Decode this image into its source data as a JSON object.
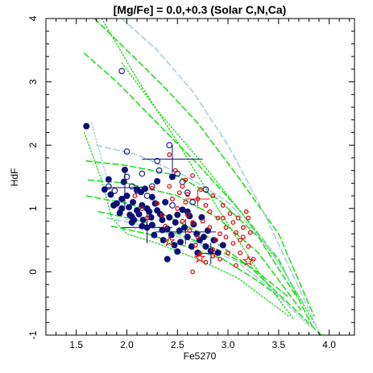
{
  "chart_data": {
    "type": "scatter",
    "title": "[Mg/Fe] = 0.0,+0.3 (Solar C,N,Ca)",
    "xlabel": "Fe5270",
    "ylabel": "HdF",
    "xlim": [
      1.2,
      4.25
    ],
    "ylim": [
      -1,
      4
    ],
    "xticks": [
      "1.5",
      "2.0",
      "2.5",
      "3.0",
      "3.5",
      "4.0"
    ],
    "xtick_values": [
      1.5,
      2.0,
      2.5,
      3.0,
      3.5,
      4.0
    ],
    "yticks": [
      "-1",
      "0",
      "1",
      "2",
      "3",
      "4"
    ],
    "ytick_values": [
      -1,
      0,
      1,
      2,
      3,
      4
    ],
    "grid": false,
    "colors": {
      "navy": "#0a0f78",
      "red": "#e01010",
      "model_green": "#22dd22",
      "model_light": "#a8cfe0"
    },
    "series": [
      {
        "marker": "filled-circle",
        "color": "#0a0f78",
        "points": [
          [
            1.6,
            2.3
          ],
          [
            1.78,
            1.3
          ],
          [
            1.82,
            1.46
          ],
          [
            1.84,
            1.22
          ],
          [
            1.87,
            1.05
          ],
          [
            1.9,
            1.08
          ],
          [
            1.93,
            0.93
          ],
          [
            1.95,
            1.15
          ],
          [
            1.97,
            1.42
          ],
          [
            1.98,
            1.61
          ],
          [
            2.0,
            1.2
          ],
          [
            2.02,
            1.02
          ],
          [
            2.03,
            0.9
          ],
          [
            2.05,
            0.87
          ],
          [
            2.06,
            1.1
          ],
          [
            2.07,
            0.82
          ],
          [
            2.1,
            0.97
          ],
          [
            2.12,
            0.91
          ],
          [
            2.14,
            1.26
          ],
          [
            2.15,
            1.05
          ],
          [
            2.16,
            0.82
          ],
          [
            2.18,
            1.31
          ],
          [
            2.2,
            1.0
          ],
          [
            2.2,
            0.7
          ],
          [
            2.22,
            0.95
          ],
          [
            2.24,
            0.86
          ],
          [
            2.25,
            0.74
          ],
          [
            2.27,
            0.58
          ],
          [
            2.28,
            1.08
          ],
          [
            2.3,
            0.97
          ],
          [
            2.3,
            1.43
          ],
          [
            2.33,
            0.91
          ],
          [
            2.35,
            0.66
          ],
          [
            2.36,
            0.5
          ],
          [
            2.38,
            1.1
          ],
          [
            2.4,
            0.68
          ],
          [
            2.42,
            0.86
          ],
          [
            2.44,
            0.58
          ],
          [
            2.45,
            1.5
          ],
          [
            2.47,
            0.42
          ],
          [
            2.48,
            0.78
          ],
          [
            2.5,
            0.9
          ],
          [
            2.52,
            0.65
          ],
          [
            2.53,
            0.47
          ],
          [
            2.55,
            0.98
          ],
          [
            2.57,
            0.7
          ],
          [
            2.6,
            0.55
          ],
          [
            2.62,
            0.88
          ],
          [
            2.64,
            0.4
          ],
          [
            2.66,
            0.75
          ],
          [
            2.69,
            0.6
          ],
          [
            2.72,
            0.5
          ],
          [
            2.74,
            0.86
          ],
          [
            2.76,
            0.55
          ],
          [
            2.78,
            0.4
          ],
          [
            2.8,
            0.65
          ],
          [
            2.83,
            0.33
          ],
          [
            2.86,
            0.5
          ],
          [
            2.9,
            0.3
          ],
          [
            2.95,
            0.42
          ],
          [
            2.4,
            0.2
          ],
          [
            2.6,
            0.95
          ],
          [
            2.1,
            1.3
          ],
          [
            2.25,
            1.18
          ],
          [
            1.95,
            1.0
          ],
          [
            2.05,
            0.78
          ],
          [
            2.35,
            0.82
          ],
          [
            2.5,
            0.32
          ],
          [
            2.7,
            0.3
          ],
          [
            2.15,
            0.72
          ]
        ]
      },
      {
        "marker": "open-circle",
        "color": "#0a0f78",
        "points": [
          [
            1.95,
            3.17
          ],
          [
            2.0,
            1.9
          ],
          [
            2.05,
            1.35
          ],
          [
            2.1,
            1.28
          ],
          [
            2.15,
            1.55
          ],
          [
            2.25,
            1.35
          ],
          [
            2.3,
            1.75
          ],
          [
            2.32,
            1.6
          ],
          [
            1.88,
            1.28
          ],
          [
            1.82,
            1.35
          ],
          [
            2.0,
            1.5
          ],
          [
            2.6,
            1.25
          ],
          [
            2.65,
            1.1
          ],
          [
            2.45,
            1.05
          ],
          [
            2.78,
            1.3
          ],
          [
            2.42,
            2.0
          ],
          [
            2.5,
            1.55
          ],
          [
            2.2,
            1.2
          ],
          [
            2.55,
            1.42
          ]
        ]
      },
      {
        "marker": "open-circle-small",
        "color": "#e01010",
        "points": [
          [
            2.42,
            1.85
          ],
          [
            2.48,
            1.6
          ],
          [
            2.55,
            1.35
          ],
          [
            2.6,
            1.22
          ],
          [
            2.65,
            1.52
          ],
          [
            2.7,
            1.15
          ],
          [
            2.73,
            1.3
          ],
          [
            2.78,
            1.05
          ],
          [
            2.82,
            0.95
          ],
          [
            2.85,
            1.2
          ],
          [
            2.9,
            0.85
          ],
          [
            2.95,
            1.05
          ],
          [
            2.98,
            0.7
          ],
          [
            3.02,
            0.92
          ],
          [
            3.05,
            0.78
          ],
          [
            3.08,
            0.62
          ],
          [
            3.1,
            0.85
          ],
          [
            3.12,
            0.5
          ],
          [
            3.15,
            0.7
          ],
          [
            3.18,
            0.95
          ],
          [
            3.2,
            0.4
          ],
          [
            3.22,
            0.62
          ],
          [
            3.12,
            0.3
          ],
          [
            3.05,
            0.45
          ],
          [
            2.98,
            0.55
          ],
          [
            2.92,
            0.6
          ],
          [
            2.88,
            0.5
          ],
          [
            2.82,
            0.7
          ],
          [
            2.75,
            0.8
          ],
          [
            2.7,
            0.55
          ],
          [
            2.65,
            0.78
          ],
          [
            2.6,
            0.9
          ],
          [
            2.55,
            0.8
          ],
          [
            2.5,
            1.0
          ],
          [
            2.45,
            1.15
          ],
          [
            2.42,
            1.35
          ],
          [
            2.52,
            1.25
          ],
          [
            2.58,
            1.1
          ],
          [
            2.62,
            0.65
          ],
          [
            2.68,
            0.42
          ],
          [
            2.72,
            0.28
          ],
          [
            2.78,
            0.15
          ],
          [
            2.85,
            0.25
          ],
          [
            2.92,
            0.2
          ],
          [
            3.0,
            0.3
          ],
          [
            3.08,
            0.1
          ],
          [
            3.15,
            0.55
          ],
          [
            3.2,
            0.85
          ],
          [
            3.25,
            0.2
          ],
          [
            2.35,
            0.9
          ],
          [
            2.38,
            0.72
          ],
          [
            2.3,
            1.08
          ],
          [
            2.2,
            0.85
          ],
          [
            2.15,
            1.0
          ],
          [
            2.08,
            1.2
          ],
          [
            2.25,
            1.32
          ],
          [
            2.85,
            0.35
          ],
          [
            2.95,
            0.85
          ],
          [
            2.58,
            1.45
          ],
          [
            2.65,
            0.0
          ]
        ]
      },
      {
        "marker": "star",
        "color": "#e01010",
        "points": [
          [
            2.72,
            0.22
          ],
          [
            3.2,
            0.17
          ],
          [
            2.42,
            0.48
          ]
        ]
      }
    ],
    "error_bars": [
      {
        "x": 2.45,
        "y": 1.78,
        "xerr": 0.3,
        "yerr": 0.22,
        "color": "#0a0f78"
      },
      {
        "x": 1.98,
        "y": 1.33,
        "xerr": 0.22,
        "yerr": 0.3,
        "color": "#0a0f78"
      },
      {
        "x": 2.2,
        "y": 0.7,
        "xerr": 0.25,
        "yerr": 0.25,
        "color": "#0a0f78"
      },
      {
        "x": 2.58,
        "y": 0.63,
        "xerr": 0.3,
        "yerr": 0.2,
        "color": "#0a0f78"
      },
      {
        "x": 2.83,
        "y": 0.29,
        "xerr": 0.1,
        "yerr": 0.17,
        "color": "#0a0f78"
      },
      {
        "x": 2.7,
        "y": 1.15,
        "xerr": 0.12,
        "yerr": 0.15,
        "color": "#e01010"
      }
    ],
    "model_lines": [
      {
        "style": "dashed",
        "color": "#22dd22",
        "points": [
          [
            1.68,
            4.0
          ],
          [
            2.0,
            3.5
          ],
          [
            2.35,
            2.95
          ],
          [
            2.7,
            2.35
          ],
          [
            3.1,
            1.5
          ],
          [
            3.5,
            0.6
          ],
          [
            3.85,
            -0.7
          ]
        ]
      },
      {
        "style": "dashed",
        "color": "#22dd22",
        "points": [
          [
            1.58,
            3.45
          ],
          [
            1.9,
            3.0
          ],
          [
            2.3,
            2.35
          ],
          [
            2.7,
            1.7
          ],
          [
            3.1,
            1.0
          ],
          [
            3.5,
            0.2
          ],
          [
            3.83,
            -0.85
          ]
        ]
      },
      {
        "style": "dashed",
        "color": "#22dd22",
        "points": [
          [
            1.6,
            1.75
          ],
          [
            2.0,
            1.68
          ],
          [
            2.5,
            1.52
          ],
          [
            2.9,
            1.15
          ],
          [
            3.3,
            0.55
          ],
          [
            3.68,
            -0.4
          ]
        ]
      },
      {
        "style": "dashed",
        "color": "#22dd22",
        "points": [
          [
            1.62,
            1.45
          ],
          [
            2.0,
            1.4
          ],
          [
            2.5,
            1.2
          ],
          [
            2.9,
            0.85
          ],
          [
            3.3,
            0.3
          ],
          [
            3.72,
            -0.6
          ]
        ]
      },
      {
        "style": "dashed",
        "color": "#22dd22",
        "points": [
          [
            1.6,
            1.2
          ],
          [
            2.0,
            1.08
          ],
          [
            2.4,
            0.88
          ],
          [
            2.8,
            0.55
          ],
          [
            3.2,
            0.1
          ],
          [
            3.6,
            -0.5
          ],
          [
            3.92,
            -1.0
          ]
        ]
      },
      {
        "style": "dashed",
        "color": "#22dd22",
        "points": [
          [
            1.72,
            0.95
          ],
          [
            2.1,
            0.82
          ],
          [
            2.5,
            0.6
          ],
          [
            2.9,
            0.35
          ],
          [
            3.25,
            0.05
          ],
          [
            3.6,
            -0.4
          ]
        ]
      },
      {
        "style": "dashed",
        "color": "#22dd22",
        "points": [
          [
            1.85,
            0.72
          ],
          [
            2.2,
            0.6
          ],
          [
            2.55,
            0.42
          ],
          [
            2.95,
            0.2
          ],
          [
            3.3,
            -0.15
          ],
          [
            3.55,
            -0.45
          ]
        ]
      },
      {
        "style": "dotted",
        "color": "#22dd22",
        "points": [
          [
            1.75,
            4.0
          ],
          [
            2.1,
            3.05
          ],
          [
            2.5,
            2.05
          ],
          [
            2.9,
            1.0
          ],
          [
            3.3,
            0.0
          ],
          [
            3.65,
            -0.75
          ]
        ]
      },
      {
        "style": "dotted",
        "color": "#22dd22",
        "points": [
          [
            1.58,
            2.2
          ],
          [
            1.75,
            1.45
          ],
          [
            1.85,
            0.85
          ],
          [
            2.0,
            0.6
          ],
          [
            2.3,
            0.45
          ],
          [
            2.7,
            0.2
          ],
          [
            3.1,
            -0.1
          ],
          [
            3.6,
            -0.7
          ]
        ]
      },
      {
        "style": "dotted",
        "color": "#22dd22",
        "points": [
          [
            1.95,
            3.3
          ],
          [
            2.3,
            2.55
          ],
          [
            2.7,
            1.8
          ],
          [
            3.1,
            1.0
          ],
          [
            3.5,
            0.15
          ],
          [
            3.85,
            -0.8
          ]
        ]
      },
      {
        "style": "dashed",
        "color": "#a8cfe0",
        "points": [
          [
            1.95,
            4.0
          ],
          [
            2.3,
            3.5
          ],
          [
            2.65,
            2.85
          ],
          [
            3.0,
            2.0
          ],
          [
            3.35,
            0.95
          ],
          [
            3.7,
            -0.25
          ],
          [
            3.9,
            -0.95
          ]
        ]
      },
      {
        "style": "dashed",
        "color": "#a8cfe0",
        "points": [
          [
            1.7,
            2.0
          ],
          [
            2.1,
            1.85
          ],
          [
            2.6,
            1.5
          ],
          [
            3.0,
            1.1
          ],
          [
            3.4,
            0.4
          ],
          [
            3.75,
            -0.5
          ]
        ]
      },
      {
        "style": "dashed",
        "color": "#a8cfe0",
        "points": [
          [
            1.8,
            0.85
          ],
          [
            2.2,
            0.72
          ],
          [
            2.7,
            0.45
          ],
          [
            3.1,
            0.15
          ],
          [
            3.45,
            -0.3
          ],
          [
            3.8,
            -0.85
          ]
        ]
      },
      {
        "style": "dotted",
        "color": "#a8cfe0",
        "points": [
          [
            1.65,
            2.35
          ],
          [
            1.8,
            1.5
          ],
          [
            1.92,
            0.95
          ],
          [
            2.1,
            0.65
          ]
        ]
      }
    ]
  }
}
